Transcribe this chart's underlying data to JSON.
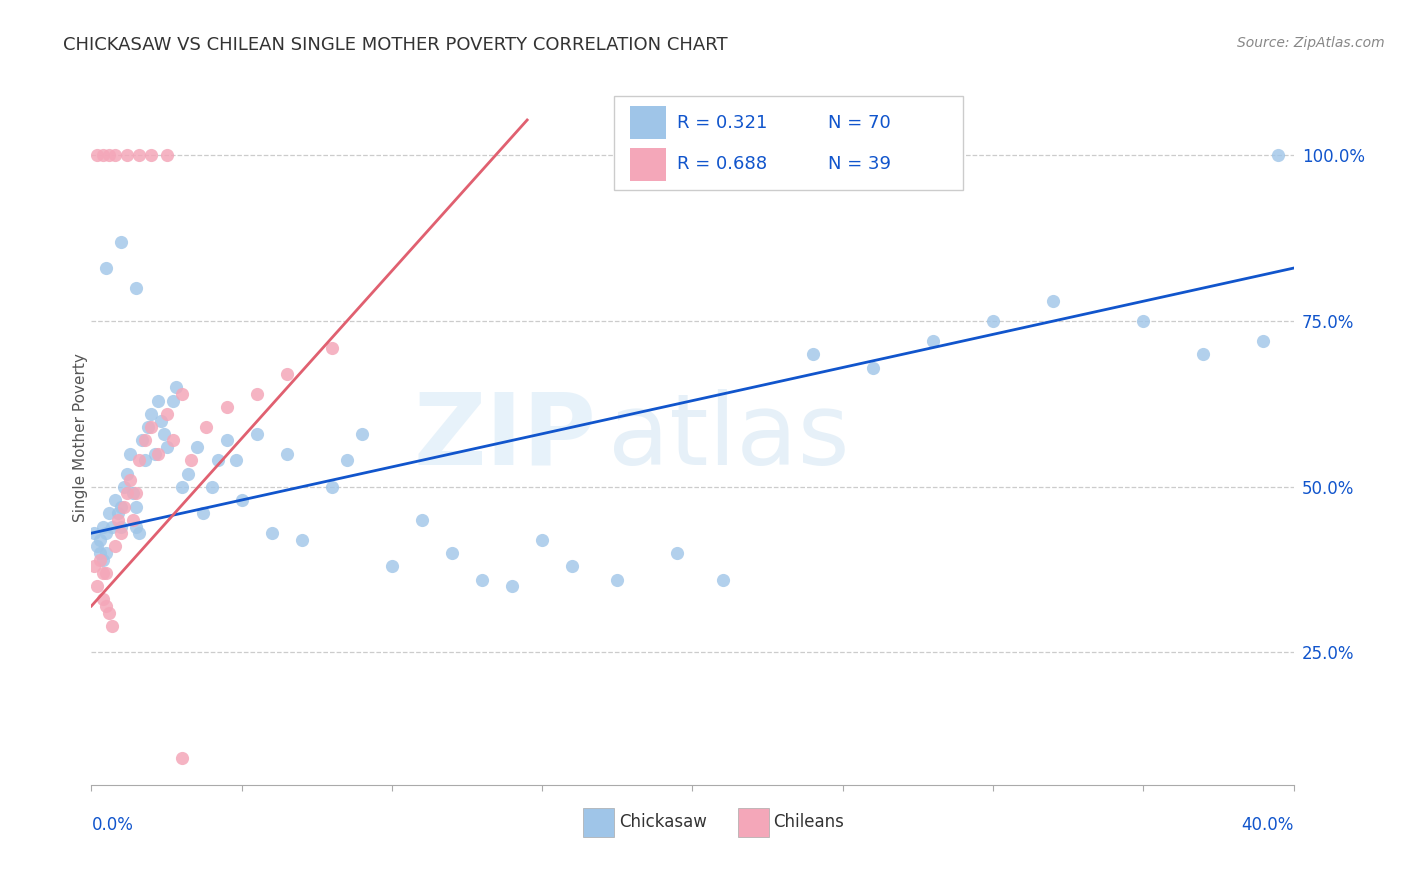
{
  "title": "CHICKASAW VS CHILEAN SINGLE MOTHER POVERTY CORRELATION CHART",
  "source": "Source: ZipAtlas.com",
  "ylabel": "Single Mother Poverty",
  "ytick_labels": [
    "25.0%",
    "50.0%",
    "75.0%",
    "100.0%"
  ],
  "ytick_values": [
    0.25,
    0.5,
    0.75,
    1.0
  ],
  "xlim": [
    0.0,
    0.4
  ],
  "ylim": [
    0.05,
    1.1
  ],
  "legend_blue_r": "R = 0.321",
  "legend_blue_n": "N = 70",
  "legend_pink_r": "R = 0.688",
  "legend_pink_n": "N = 39",
  "blue_color": "#9fc5e8",
  "pink_color": "#f4a7b9",
  "trendline_blue": "#1155cc",
  "trendline_pink": "#e06070",
  "watermark_zip": "ZIP",
  "watermark_atlas": "atlas",
  "chickasaw_x": [
    0.001,
    0.002,
    0.003,
    0.003,
    0.004,
    0.004,
    0.005,
    0.005,
    0.006,
    0.007,
    0.008,
    0.009,
    0.01,
    0.01,
    0.011,
    0.012,
    0.013,
    0.014,
    0.015,
    0.015,
    0.016,
    0.017,
    0.018,
    0.019,
    0.02,
    0.021,
    0.022,
    0.023,
    0.024,
    0.025,
    0.027,
    0.028,
    0.03,
    0.032,
    0.035,
    0.037,
    0.04,
    0.042,
    0.045,
    0.048,
    0.05,
    0.055,
    0.06,
    0.065,
    0.07,
    0.08,
    0.085,
    0.09,
    0.1,
    0.11,
    0.12,
    0.13,
    0.14,
    0.15,
    0.16,
    0.175,
    0.195,
    0.21,
    0.24,
    0.26,
    0.28,
    0.3,
    0.32,
    0.35,
    0.37,
    0.39,
    0.005,
    0.01,
    0.015,
    0.395
  ],
  "chickasaw_y": [
    0.43,
    0.41,
    0.42,
    0.4,
    0.39,
    0.44,
    0.43,
    0.4,
    0.46,
    0.44,
    0.48,
    0.46,
    0.47,
    0.44,
    0.5,
    0.52,
    0.55,
    0.49,
    0.47,
    0.44,
    0.43,
    0.57,
    0.54,
    0.59,
    0.61,
    0.55,
    0.63,
    0.6,
    0.58,
    0.56,
    0.63,
    0.65,
    0.5,
    0.52,
    0.56,
    0.46,
    0.5,
    0.54,
    0.57,
    0.54,
    0.48,
    0.58,
    0.43,
    0.55,
    0.42,
    0.5,
    0.54,
    0.58,
    0.38,
    0.45,
    0.4,
    0.36,
    0.35,
    0.42,
    0.38,
    0.36,
    0.4,
    0.36,
    0.7,
    0.68,
    0.72,
    0.75,
    0.78,
    0.75,
    0.7,
    0.72,
    0.83,
    0.87,
    0.8,
    1.0
  ],
  "chilean_x": [
    0.001,
    0.002,
    0.003,
    0.004,
    0.004,
    0.005,
    0.005,
    0.006,
    0.007,
    0.008,
    0.009,
    0.01,
    0.011,
    0.012,
    0.013,
    0.014,
    0.015,
    0.016,
    0.018,
    0.02,
    0.022,
    0.025,
    0.027,
    0.03,
    0.033,
    0.038,
    0.045,
    0.055,
    0.065,
    0.08,
    0.002,
    0.004,
    0.006,
    0.008,
    0.012,
    0.016,
    0.02,
    0.025,
    0.03
  ],
  "chilean_y": [
    0.38,
    0.35,
    0.39,
    0.37,
    0.33,
    0.32,
    0.37,
    0.31,
    0.29,
    0.41,
    0.45,
    0.43,
    0.47,
    0.49,
    0.51,
    0.45,
    0.49,
    0.54,
    0.57,
    0.59,
    0.55,
    0.61,
    0.57,
    0.64,
    0.54,
    0.59,
    0.62,
    0.64,
    0.67,
    0.71,
    1.0,
    1.0,
    1.0,
    1.0,
    1.0,
    1.0,
    1.0,
    1.0,
    0.09
  ]
}
